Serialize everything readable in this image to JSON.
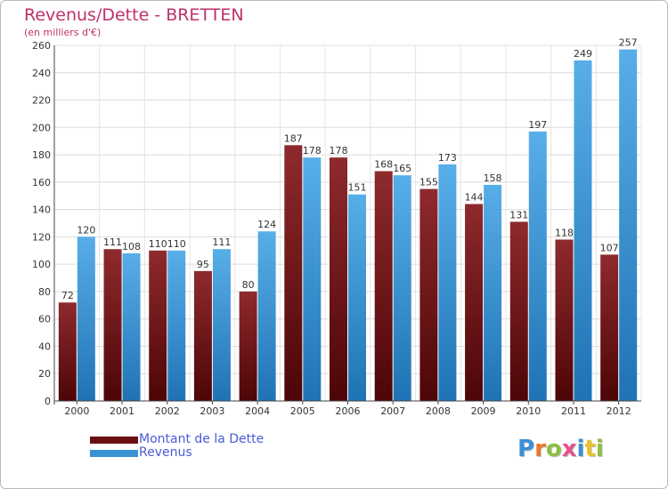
{
  "title": "Revenus/Dette - BRETTEN",
  "subtitle": "(en milliers d'€)",
  "chart_data": {
    "type": "bar",
    "categories": [
      "2000",
      "2001",
      "2002",
      "2003",
      "2004",
      "2005",
      "2006",
      "2007",
      "2008",
      "2009",
      "2010",
      "2011",
      "2012"
    ],
    "series": [
      {
        "name": "Montant de la Dette",
        "color": "#7a1416",
        "values": [
          72,
          111,
          110,
          95,
          80,
          187,
          178,
          168,
          155,
          144,
          131,
          118,
          107
        ]
      },
      {
        "name": "Revenus",
        "color": "#2f86c8",
        "values": [
          120,
          108,
          110,
          111,
          124,
          178,
          151,
          165,
          173,
          158,
          197,
          249,
          257
        ]
      }
    ],
    "ylim": [
      0,
      260
    ],
    "yticks": [
      0,
      20,
      40,
      60,
      80,
      100,
      120,
      140,
      160,
      180,
      200,
      220,
      240,
      260
    ],
    "grid": true,
    "legend_position": "bottom-left"
  },
  "legend": {
    "items": [
      {
        "label": "Montant de la Dette",
        "color": "#7a1416"
      },
      {
        "label": "Revenus",
        "color": "#2f86c8"
      }
    ]
  },
  "logo": {
    "text": "Proxiti",
    "letter_colors": [
      "#3b8fd6",
      "#e8792b",
      "#8cbf3f",
      "#e84f8c",
      "#3b8fd6",
      "#e8c12b",
      "#8cbf3f"
    ]
  }
}
